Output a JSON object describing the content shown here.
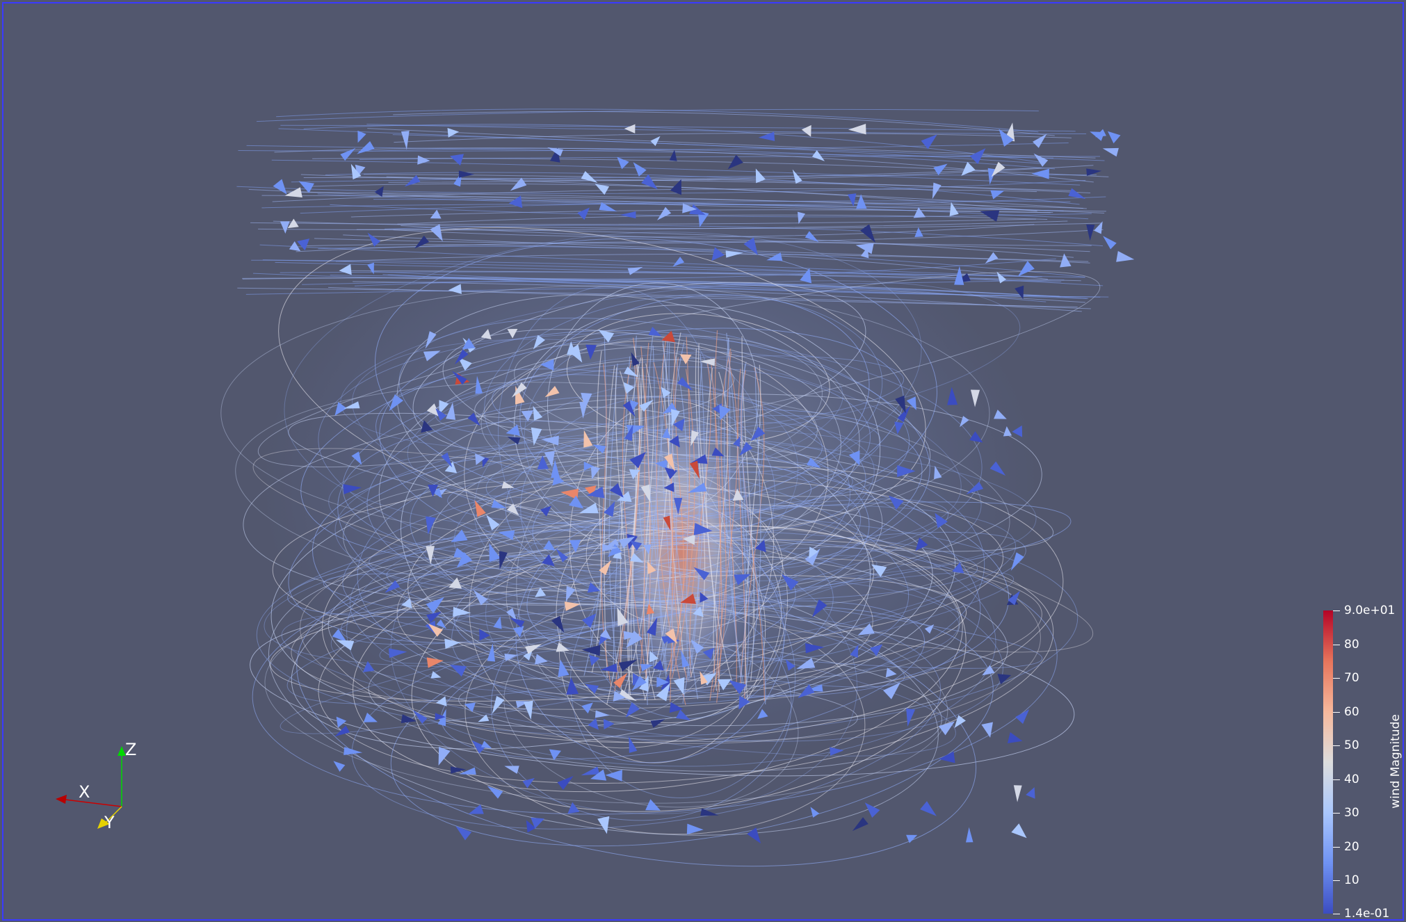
{
  "view": {
    "background_color": "#52576e",
    "border_color": "#3a3aff"
  },
  "orientation_axes": {
    "x_label": "X",
    "y_label": "Y",
    "z_label": "Z",
    "x_color": "#cc0000",
    "y_color": "#e6d200",
    "z_color": "#00d800"
  },
  "colorbar": {
    "title": "wind Magnitude",
    "colormap": "Cool to Warm",
    "colors": [
      "#3b4cc0",
      "#6f92f3",
      "#aac7fd",
      "#dddddd",
      "#f7b89c",
      "#e7745b",
      "#b40426"
    ],
    "range": [
      0.14,
      90
    ],
    "ticks": [
      {
        "value": 90,
        "label": "9.0e+01"
      },
      {
        "value": 80,
        "label": "80"
      },
      {
        "value": 70,
        "label": "70"
      },
      {
        "value": 60,
        "label": "60"
      },
      {
        "value": 50,
        "label": "50"
      },
      {
        "value": 40,
        "label": "40"
      },
      {
        "value": 30,
        "label": "30"
      },
      {
        "value": 20,
        "label": "20"
      },
      {
        "value": 10,
        "label": "10"
      },
      {
        "value": 0.14,
        "label": "1.4e-01"
      }
    ]
  }
}
